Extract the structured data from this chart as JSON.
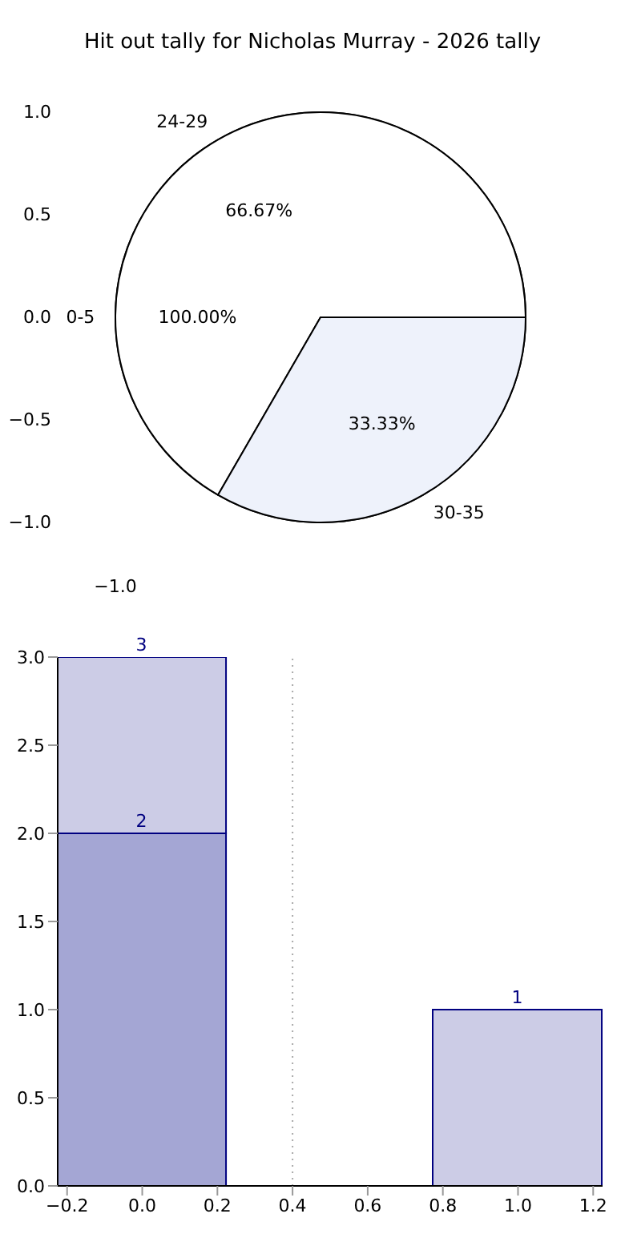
{
  "chart_data": [
    {
      "type": "pie",
      "title": "Hit out tally for Nicholas Murray - 2026 tally",
      "categories": [
        "0-5"
      ],
      "values": [
        100
      ],
      "value_labels": [
        "100.00%"
      ],
      "colors": [
        "#ffffff"
      ],
      "annotations": [
        "1.0",
        "0.5",
        "0.0",
        "−0.5",
        "−1.0",
        "−1.0"
      ]
    },
    {
      "type": "pie",
      "categories": [
        "24-29",
        "30-35"
      ],
      "values": [
        66.67,
        33.33
      ],
      "value_labels": [
        "66.67%",
        "33.33%"
      ],
      "colors": [
        "#ffffff",
        "#eef2fb"
      ]
    },
    {
      "type": "bar",
      "x": [
        0,
        1
      ],
      "stacked": true,
      "series": [
        {
          "color": "#a4a6d4",
          "values": [
            2,
            null
          ],
          "value_labels": [
            "2",
            null
          ]
        },
        {
          "color": "#cccce6",
          "values": [
            1,
            1
          ]
        }
      ],
      "totals": [
        "3",
        "1"
      ],
      "xlim": [
        -0.225,
        1.225
      ],
      "ylim": [
        0,
        3
      ],
      "xticks": [
        {
          "value": -0.2,
          "label": "−0.2"
        },
        {
          "value": 0,
          "label": "0.0"
        },
        {
          "value": 0.2,
          "label": "0.2"
        },
        {
          "value": 0.4,
          "label": "0.4"
        },
        {
          "value": 0.6,
          "label": "0.6"
        },
        {
          "value": 0.8,
          "label": "0.8"
        },
        {
          "value": 1,
          "label": "1.0"
        },
        {
          "value": 1.2,
          "label": "1.2"
        }
      ],
      "yticks": [
        {
          "value": 0,
          "label": "0.0"
        },
        {
          "value": 0.5,
          "label": "0.5"
        },
        {
          "value": 1,
          "label": "1.0"
        },
        {
          "value": 1.5,
          "label": "1.5"
        },
        {
          "value": 2,
          "label": "2.0"
        },
        {
          "value": 2.5,
          "label": "2.5"
        },
        {
          "value": 3,
          "label": "3.0"
        }
      ],
      "ref_lines": [
        {
          "axis": "x",
          "value": 0.4,
          "color": "#aaaaaa",
          "line_style": "dotted"
        }
      ]
    }
  ]
}
